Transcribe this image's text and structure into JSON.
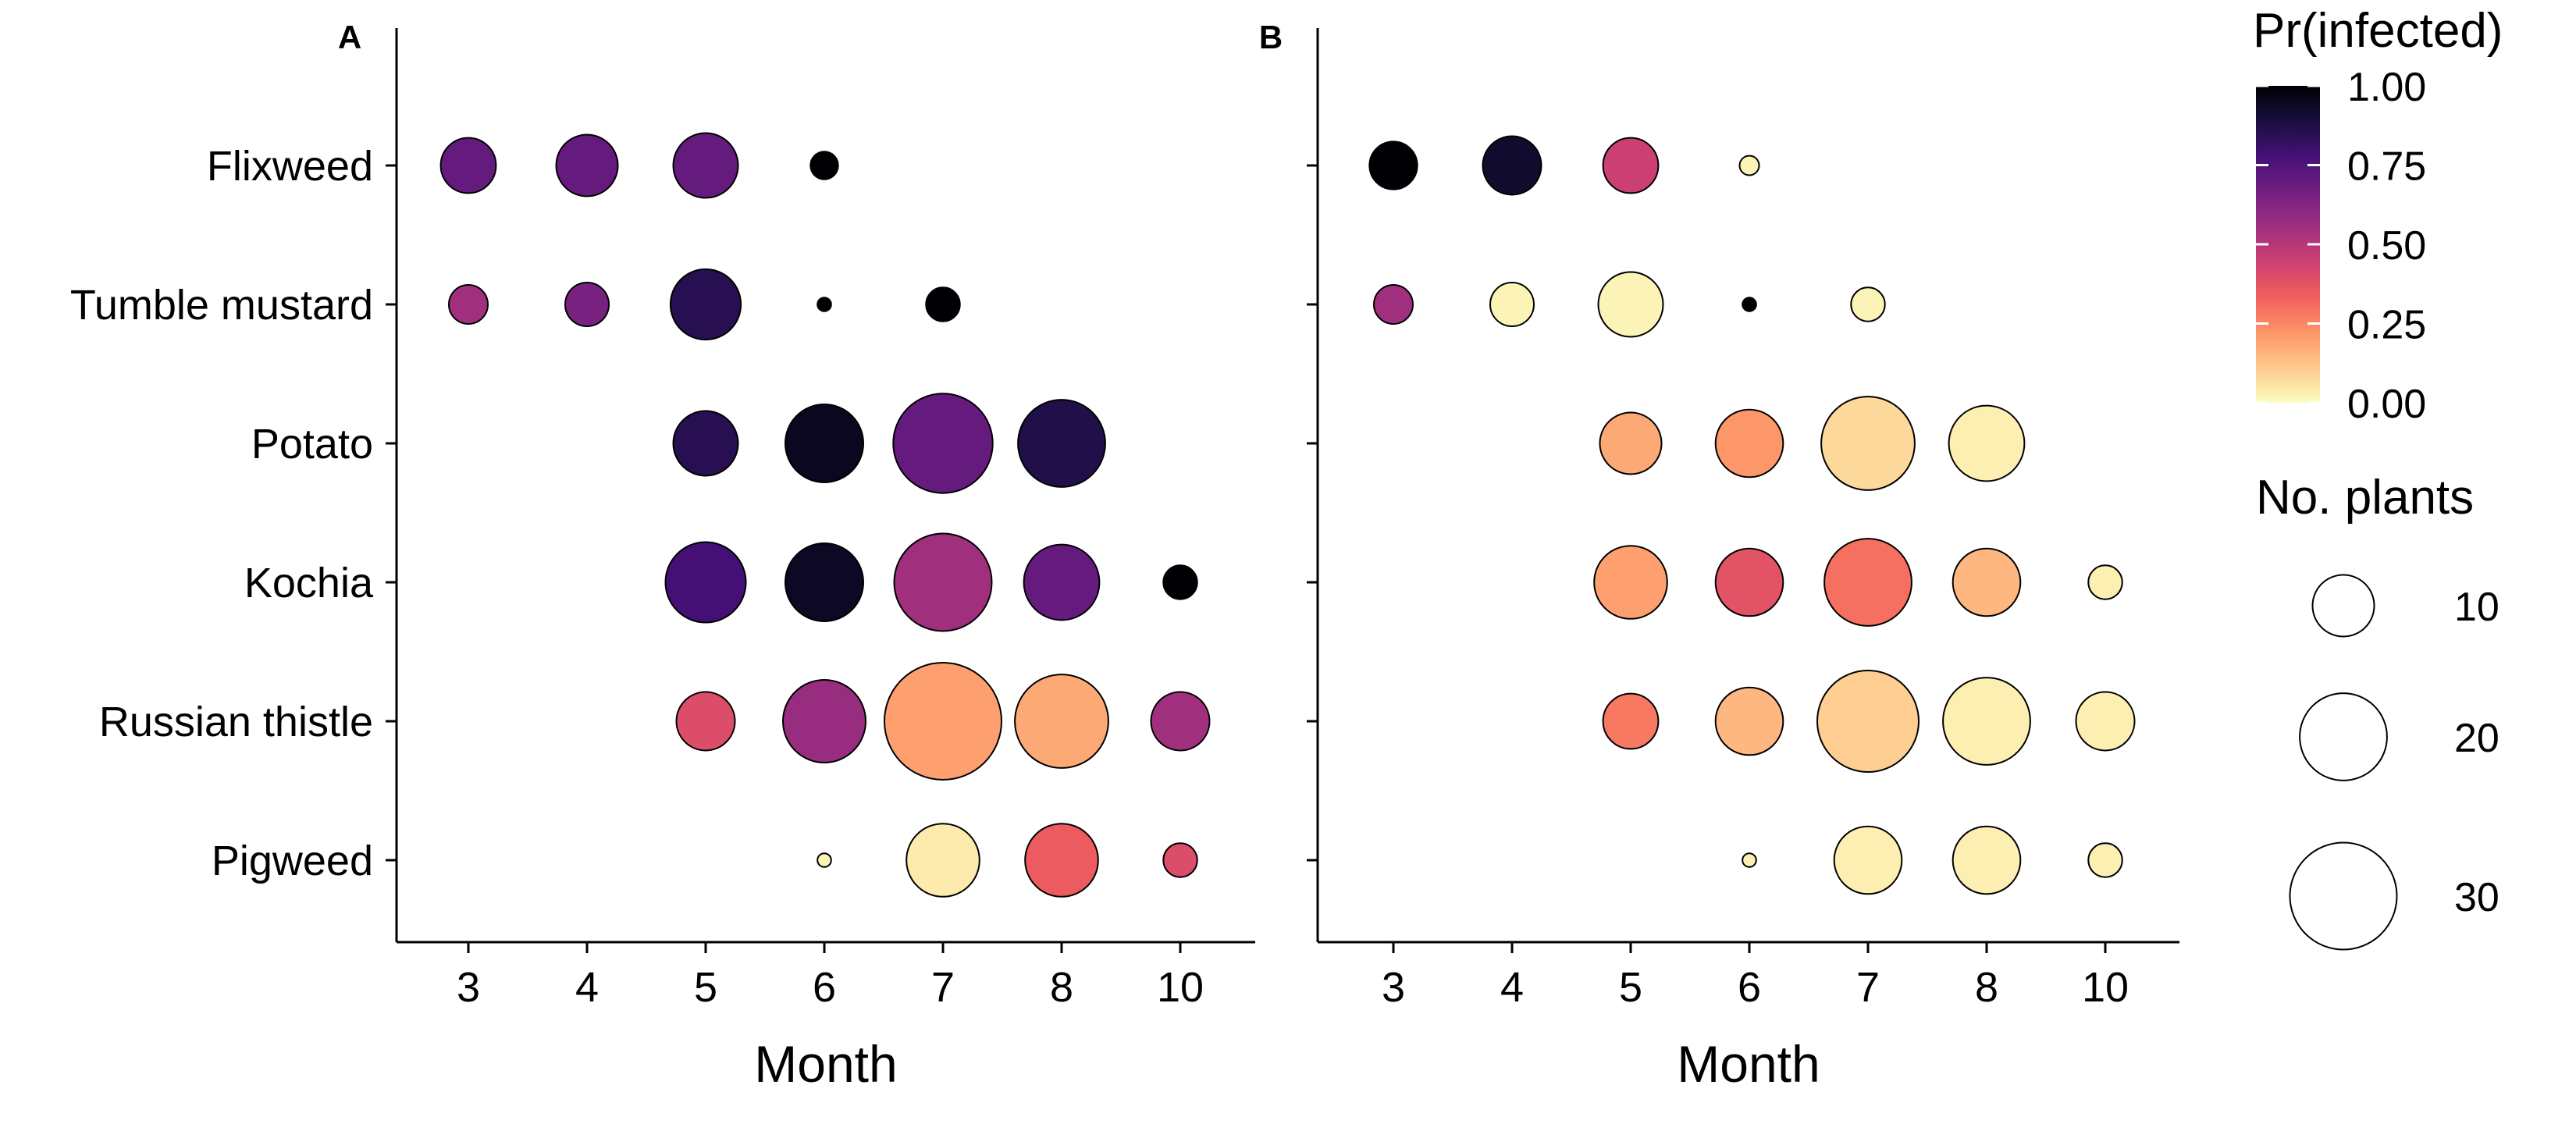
{
  "chart_data": {
    "type": "scatter",
    "size_variable": "No. plants",
    "color_variable": "Pr(infected)",
    "categories_y": [
      "Flixweed",
      "Tumble mustard",
      "Potato",
      "Kochia",
      "Russian thistle",
      "Pigweed"
    ],
    "categories_x": [
      "3",
      "4",
      "5",
      "6",
      "7",
      "8",
      "10"
    ],
    "xlabel": "Month",
    "ylabel": "",
    "panels": [
      {
        "label": "A",
        "points": [
          {
            "species": "Flixweed",
            "month": "3",
            "n": 8,
            "p": 0.7
          },
          {
            "species": "Flixweed",
            "month": "4",
            "n": 10,
            "p": 0.7
          },
          {
            "species": "Flixweed",
            "month": "5",
            "n": 11,
            "p": 0.7
          },
          {
            "species": "Flixweed",
            "month": "6",
            "n": 2,
            "p": 1.0
          },
          {
            "species": "Tumble mustard",
            "month": "3",
            "n": 4,
            "p": 0.55
          },
          {
            "species": "Tumble mustard",
            "month": "4",
            "n": 5,
            "p": 0.65
          },
          {
            "species": "Tumble mustard",
            "month": "5",
            "n": 13,
            "p": 0.85
          },
          {
            "species": "Tumble mustard",
            "month": "6",
            "n": 0.5,
            "p": 1.0
          },
          {
            "species": "Tumble mustard",
            "month": "7",
            "n": 3,
            "p": 1.0
          },
          {
            "species": "Potato",
            "month": "5",
            "n": 11,
            "p": 0.85
          },
          {
            "species": "Potato",
            "month": "6",
            "n": 16,
            "p": 0.95
          },
          {
            "species": "Potato",
            "month": "7",
            "n": 26,
            "p": 0.7
          },
          {
            "species": "Potato",
            "month": "8",
            "n": 20,
            "p": 0.87
          },
          {
            "species": "Kochia",
            "month": "5",
            "n": 17,
            "p": 0.78
          },
          {
            "species": "Kochia",
            "month": "6",
            "n": 16,
            "p": 0.94
          },
          {
            "species": "Kochia",
            "month": "7",
            "n": 25,
            "p": 0.55
          },
          {
            "species": "Kochia",
            "month": "8",
            "n": 15,
            "p": 0.7
          },
          {
            "species": "Kochia",
            "month": "10",
            "n": 3,
            "p": 1.0
          },
          {
            "species": "Russian thistle",
            "month": "5",
            "n": 9,
            "p": 0.4
          },
          {
            "species": "Russian thistle",
            "month": "6",
            "n": 18,
            "p": 0.57
          },
          {
            "species": "Russian thistle",
            "month": "7",
            "n": 36,
            "p": 0.2
          },
          {
            "species": "Russian thistle",
            "month": "8",
            "n": 23,
            "p": 0.18
          },
          {
            "species": "Russian thistle",
            "month": "10",
            "n": 9,
            "p": 0.55
          },
          {
            "species": "Pigweed",
            "month": "6",
            "n": 0.5,
            "p": 0.02
          },
          {
            "species": "Pigweed",
            "month": "7",
            "n": 14,
            "p": 0.04
          },
          {
            "species": "Pigweed",
            "month": "8",
            "n": 14,
            "p": 0.35
          },
          {
            "species": "Pigweed",
            "month": "10",
            "n": 3,
            "p": 0.4
          }
        ]
      },
      {
        "label": "B",
        "points": [
          {
            "species": "Flixweed",
            "month": "3",
            "n": 6,
            "p": 1.0
          },
          {
            "species": "Flixweed",
            "month": "4",
            "n": 9,
            "p": 0.92
          },
          {
            "species": "Flixweed",
            "month": "5",
            "n": 8,
            "p": 0.45
          },
          {
            "species": "Flixweed",
            "month": "6",
            "n": 1,
            "p": 0.02
          },
          {
            "species": "Tumble mustard",
            "month": "3",
            "n": 4,
            "p": 0.55
          },
          {
            "species": "Tumble mustard",
            "month": "4",
            "n": 5,
            "p": 0.02
          },
          {
            "species": "Tumble mustard",
            "month": "5",
            "n": 11,
            "p": 0.02
          },
          {
            "species": "Tumble mustard",
            "month": "6",
            "n": 0.5,
            "p": 1.0
          },
          {
            "species": "Tumble mustard",
            "month": "7",
            "n": 3,
            "p": 0.02
          },
          {
            "species": "Potato",
            "month": "5",
            "n": 10,
            "p": 0.18
          },
          {
            "species": "Potato",
            "month": "6",
            "n": 12,
            "p": 0.22
          },
          {
            "species": "Potato",
            "month": "7",
            "n": 23,
            "p": 0.08
          },
          {
            "species": "Potato",
            "month": "8",
            "n": 15,
            "p": 0.03
          },
          {
            "species": "Kochia",
            "month": "5",
            "n": 14,
            "p": 0.2
          },
          {
            "species": "Kochia",
            "month": "6",
            "n": 12,
            "p": 0.38
          },
          {
            "species": "Kochia",
            "month": "7",
            "n": 20,
            "p": 0.3
          },
          {
            "species": "Kochia",
            "month": "8",
            "n": 12,
            "p": 0.15
          },
          {
            "species": "Kochia",
            "month": "10",
            "n": 3,
            "p": 0.03
          },
          {
            "species": "Russian thistle",
            "month": "5",
            "n": 8,
            "p": 0.28
          },
          {
            "species": "Russian thistle",
            "month": "6",
            "n": 12,
            "p": 0.15
          },
          {
            "species": "Russian thistle",
            "month": "7",
            "n": 27,
            "p": 0.1
          },
          {
            "species": "Russian thistle",
            "month": "8",
            "n": 20,
            "p": 0.03
          },
          {
            "species": "Russian thistle",
            "month": "10",
            "n": 9,
            "p": 0.03
          },
          {
            "species": "Pigweed",
            "month": "6",
            "n": 0.5,
            "p": 0.03
          },
          {
            "species": "Pigweed",
            "month": "7",
            "n": 12,
            "p": 0.03
          },
          {
            "species": "Pigweed",
            "month": "8",
            "n": 12,
            "p": 0.03
          },
          {
            "species": "Pigweed",
            "month": "10",
            "n": 3,
            "p": 0.03
          }
        ]
      }
    ],
    "color_scale": {
      "title": "Pr(infected)",
      "palette": "magma",
      "limits": [
        0,
        1
      ],
      "ticks": [
        "1.00",
        "0.75",
        "0.50",
        "0.25",
        "0.00"
      ],
      "stops": [
        "#000004",
        "#180f3e",
        "#451077",
        "#721f81",
        "#9e2f7f",
        "#cd4071",
        "#f1605d",
        "#fd9567",
        "#fec98d",
        "#fcfdbf"
      ]
    },
    "size_legend": {
      "title": "No. plants",
      "values": [
        10,
        20,
        30
      ],
      "labels": [
        "10",
        "20",
        "30"
      ]
    },
    "grid": false,
    "legend_position": "right"
  }
}
